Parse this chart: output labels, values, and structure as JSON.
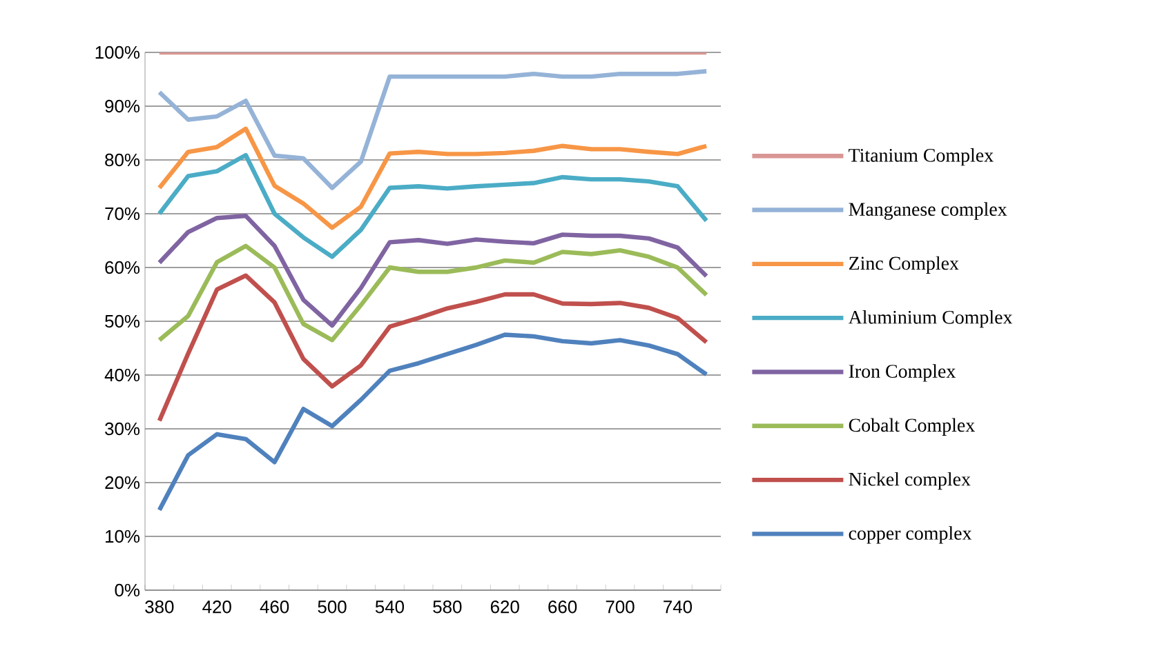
{
  "chart_data": {
    "type": "line",
    "categories": [
      "380",
      null,
      "420",
      null,
      "460",
      null,
      "500",
      null,
      "540",
      null,
      "580",
      null,
      "620",
      null,
      "660",
      null,
      "700",
      null,
      "740",
      null
    ],
    "series": [
      {
        "name": "Titanium Complex",
        "color": "#d99694",
        "values": [
          100,
          100,
          100,
          100,
          100,
          100,
          100,
          100,
          100,
          100,
          100,
          100,
          100,
          100,
          100,
          100,
          100,
          100,
          100,
          100
        ]
      },
      {
        "name": "Manganese complex",
        "color": "#95b3d7",
        "values": [
          92.6,
          87.5,
          88.1,
          91,
          80.8,
          80.3,
          74.8,
          79.7,
          95.5,
          95.5,
          95.5,
          95.5,
          95.5,
          96,
          95.5,
          95.5,
          96,
          96,
          96,
          96.5
        ]
      },
      {
        "name": "Zinc Complex",
        "color": "#f79646",
        "values": [
          74.8,
          81.5,
          82.4,
          85.8,
          75.2,
          71.9,
          67.4,
          71.3,
          81.2,
          81.5,
          81.1,
          81.1,
          81.3,
          81.7,
          82.6,
          82,
          82,
          81.5,
          81.1,
          82.6
        ]
      },
      {
        "name": "Aluminium Complex",
        "color": "#4bacc6",
        "values": [
          70,
          77,
          77.9,
          80.9,
          70,
          65.6,
          62,
          67,
          74.8,
          75.1,
          74.7,
          75.1,
          75.4,
          75.7,
          76.8,
          76.4,
          76.4,
          76,
          75.1,
          68.7
        ]
      },
      {
        "name": "Iron Complex",
        "color": "#8064a2",
        "values": [
          60.9,
          66.6,
          69.2,
          69.6,
          64,
          54,
          49.2,
          56.2,
          64.7,
          65.1,
          64.4,
          65.2,
          64.8,
          64.5,
          66.1,
          65.9,
          65.9,
          65.4,
          63.7,
          58.4
        ]
      },
      {
        "name": "Cobalt Complex",
        "color": "#9bbb59",
        "values": [
          46.5,
          51,
          61,
          64,
          60,
          49.5,
          46.5,
          53,
          60,
          59.2,
          59.2,
          60,
          61.3,
          60.9,
          62.9,
          62.5,
          63.2,
          62,
          60,
          54.9
        ]
      },
      {
        "name": "Nickel complex",
        "color": "#c0504d",
        "values": [
          31.5,
          44,
          55.9,
          58.5,
          53.5,
          43,
          37.9,
          41.8,
          49,
          50.6,
          52.4,
          53.6,
          55,
          55,
          53.3,
          53.2,
          53.4,
          52.5,
          50.6,
          46.1
        ]
      },
      {
        "name": "copper complex",
        "color": "#4f81bd",
        "values": [
          14.9,
          25.1,
          29,
          28.1,
          23.8,
          33.7,
          30.5,
          35.4,
          40.8,
          42.2,
          43.9,
          45.6,
          47.5,
          47.2,
          46.3,
          45.9,
          46.5,
          45.5,
          43.9,
          40.1
        ]
      }
    ],
    "ylim": [
      0,
      100
    ],
    "yticks": [
      {
        "value": 0,
        "label": "0%"
      },
      {
        "value": 10,
        "label": "10%"
      },
      {
        "value": 20,
        "label": "20%"
      },
      {
        "value": 30,
        "label": "30%"
      },
      {
        "value": 40,
        "label": "40%"
      },
      {
        "value": 50,
        "label": "50%"
      },
      {
        "value": 60,
        "label": "60%"
      },
      {
        "value": 70,
        "label": "70%"
      },
      {
        "value": 80,
        "label": "80%"
      },
      {
        "value": 90,
        "label": "90%"
      },
      {
        "value": 100,
        "label": "100%"
      }
    ],
    "grid": "y",
    "legend": "right",
    "marker": "none",
    "line_style": "solid"
  }
}
